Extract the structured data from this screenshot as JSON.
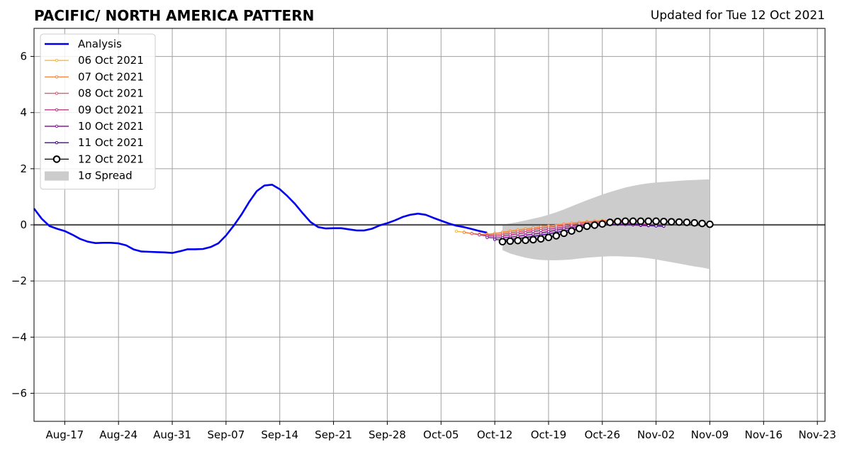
{
  "header": {
    "title": "PACIFIC/ NORTH AMERICA PATTERN",
    "subtitle": "Updated for Tue 12 Oct 2021"
  },
  "chart_data": {
    "type": "line",
    "title": "PACIFIC/ NORTH AMERICA PATTERN",
    "subtitle": "Updated for Tue 12 Oct 2021",
    "xlabel": "",
    "ylabel": "",
    "x_axis": {
      "type": "date",
      "range": [
        "2021-08-13",
        "2021-11-24"
      ],
      "tick_labels": [
        "Aug-17",
        "Aug-24",
        "Aug-31",
        "Sep-07",
        "Sep-14",
        "Sep-21",
        "Sep-28",
        "Oct-05",
        "Oct-12",
        "Oct-19",
        "Oct-26",
        "Nov-02",
        "Nov-09",
        "Nov-16",
        "Nov-23"
      ],
      "tick_dates": [
        "2021-08-17",
        "2021-08-24",
        "2021-08-31",
        "2021-09-07",
        "2021-09-14",
        "2021-09-21",
        "2021-09-28",
        "2021-10-05",
        "2021-10-12",
        "2021-10-19",
        "2021-10-26",
        "2021-11-02",
        "2021-11-09",
        "2021-11-16",
        "2021-11-23"
      ]
    },
    "y_axis": {
      "range": [
        -7,
        7
      ],
      "tick_values": [
        -6,
        -4,
        -2,
        0,
        2,
        4,
        6
      ],
      "tick_labels": [
        "−6",
        "−4",
        "−2",
        "0",
        "2",
        "4",
        "6"
      ]
    },
    "grid": true,
    "zero_line": true,
    "legend": {
      "placement": "upper-left",
      "entries": [
        "Analysis",
        "06 Oct 2021",
        "07 Oct 2021",
        "08 Oct 2021",
        "09 Oct 2021",
        "10 Oct 2021",
        "11 Oct 2021",
        "12 Oct 2021",
        "1σ Spread"
      ]
    },
    "colors": {
      "analysis": "#0000ee",
      "06 Oct 2021": "#fcb83a",
      "07 Oct 2021": "#f28844",
      "08 Oct 2021": "#dc5c6a",
      "09 Oct 2021": "#b83a8a",
      "10 Oct 2021": "#8c1a9c",
      "11 Oct 2021": "#4a0a8a",
      "12 Oct 2021": "#000000",
      "spread": "#cccccc"
    },
    "series": [
      {
        "name": "Analysis",
        "start_date": "2021-08-13",
        "values": [
          0.58,
          0.22,
          -0.04,
          -0.14,
          -0.22,
          -0.35,
          -0.5,
          -0.6,
          -0.65,
          -0.64,
          -0.64,
          -0.66,
          -0.73,
          -0.88,
          -0.95,
          -0.96,
          -0.97,
          -0.98,
          -1.0,
          -0.94,
          -0.87,
          -0.87,
          -0.86,
          -0.79,
          -0.66,
          -0.38,
          -0.03,
          0.36,
          0.81,
          1.2,
          1.4,
          1.43,
          1.27,
          1.02,
          0.74,
          0.41,
          0.1,
          -0.08,
          -0.13,
          -0.12,
          -0.12,
          -0.16,
          -0.2,
          -0.2,
          -0.14,
          -0.02,
          0.06,
          0.16,
          0.28,
          0.36,
          0.4,
          0.36,
          0.25,
          0.15,
          0.05,
          -0.03,
          -0.08,
          -0.15,
          -0.22,
          -0.28
        ]
      },
      {
        "name": "06 Oct 2021",
        "start_date": "2021-10-07",
        "values": [
          -0.23,
          -0.26,
          -0.3,
          -0.33,
          -0.33,
          -0.3,
          -0.26,
          -0.22,
          -0.18,
          -0.14,
          -0.11,
          -0.07,
          -0.04,
          -0.01,
          0.03,
          0.06,
          0.09,
          0.12,
          0.14,
          0.16,
          0.17,
          0.18,
          0.18
        ]
      },
      {
        "name": "07 Oct 2021",
        "start_date": "2021-10-08",
        "values": [
          -0.27,
          -0.31,
          -0.34,
          -0.34,
          -0.31,
          -0.27,
          -0.23,
          -0.19,
          -0.15,
          -0.11,
          -0.07,
          -0.04,
          -0.01,
          0.03,
          0.06,
          0.09,
          0.11,
          0.13,
          0.15,
          0.16,
          0.17,
          0.17,
          0.17
        ]
      },
      {
        "name": "08 Oct 2021",
        "start_date": "2021-10-09",
        "values": [
          -0.31,
          -0.35,
          -0.37,
          -0.36,
          -0.33,
          -0.29,
          -0.25,
          -0.21,
          -0.17,
          -0.13,
          -0.09,
          -0.05,
          -0.02,
          0.01,
          0.05,
          0.08,
          0.1,
          0.12,
          0.13,
          0.14,
          0.15,
          0.15,
          0.15
        ]
      },
      {
        "name": "09 Oct 2021",
        "start_date": "2021-10-10",
        "values": [
          -0.36,
          -0.4,
          -0.41,
          -0.39,
          -0.36,
          -0.32,
          -0.28,
          -0.24,
          -0.2,
          -0.16,
          -0.12,
          -0.08,
          -0.04,
          -0.01,
          0.02,
          0.05,
          0.07,
          0.08,
          0.08,
          0.07,
          0.05,
          0.03,
          0.0
        ]
      },
      {
        "name": "10 Oct 2021",
        "start_date": "2021-10-11",
        "values": [
          -0.45,
          -0.47,
          -0.46,
          -0.44,
          -0.41,
          -0.37,
          -0.33,
          -0.29,
          -0.24,
          -0.19,
          -0.14,
          -0.1,
          -0.06,
          -0.03,
          -0.01,
          0.01,
          0.02,
          0.02,
          0.01,
          0.0,
          -0.02,
          -0.03,
          -0.04
        ]
      },
      {
        "name": "11 Oct 2021",
        "start_date": "2021-10-12",
        "values": [
          -0.52,
          -0.54,
          -0.52,
          -0.49,
          -0.45,
          -0.41,
          -0.37,
          -0.32,
          -0.27,
          -0.22,
          -0.17,
          -0.12,
          -0.08,
          -0.04,
          -0.01,
          0.01,
          0.02,
          0.02,
          0.01,
          0.0,
          -0.02,
          -0.04,
          -0.05
        ]
      },
      {
        "name": "12 Oct 2021",
        "start_date": "2021-10-13",
        "values": [
          -0.6,
          -0.58,
          -0.56,
          -0.55,
          -0.53,
          -0.5,
          -0.45,
          -0.39,
          -0.3,
          -0.22,
          -0.13,
          -0.05,
          -0.01,
          0.03,
          0.09,
          0.12,
          0.13,
          0.13,
          0.13,
          0.13,
          0.13,
          0.12,
          0.11,
          0.1,
          0.09,
          0.07,
          0.05,
          0.02
        ]
      }
    ],
    "spread": {
      "name": "1σ Spread",
      "start_date": "2021-10-13",
      "upper": [
        0.0,
        0.05,
        0.1,
        0.16,
        0.22,
        0.28,
        0.36,
        0.45,
        0.55,
        0.66,
        0.77,
        0.88,
        0.98,
        1.08,
        1.17,
        1.25,
        1.33,
        1.39,
        1.44,
        1.48,
        1.51,
        1.53,
        1.55,
        1.57,
        1.59,
        1.6,
        1.61,
        1.62
      ],
      "lower": [
        -0.9,
        -1.02,
        -1.1,
        -1.17,
        -1.22,
        -1.25,
        -1.26,
        -1.26,
        -1.25,
        -1.23,
        -1.2,
        -1.17,
        -1.15,
        -1.13,
        -1.12,
        -1.12,
        -1.13,
        -1.14,
        -1.16,
        -1.19,
        -1.23,
        -1.28,
        -1.33,
        -1.38,
        -1.43,
        -1.48,
        -1.52,
        -1.58
      ]
    }
  }
}
